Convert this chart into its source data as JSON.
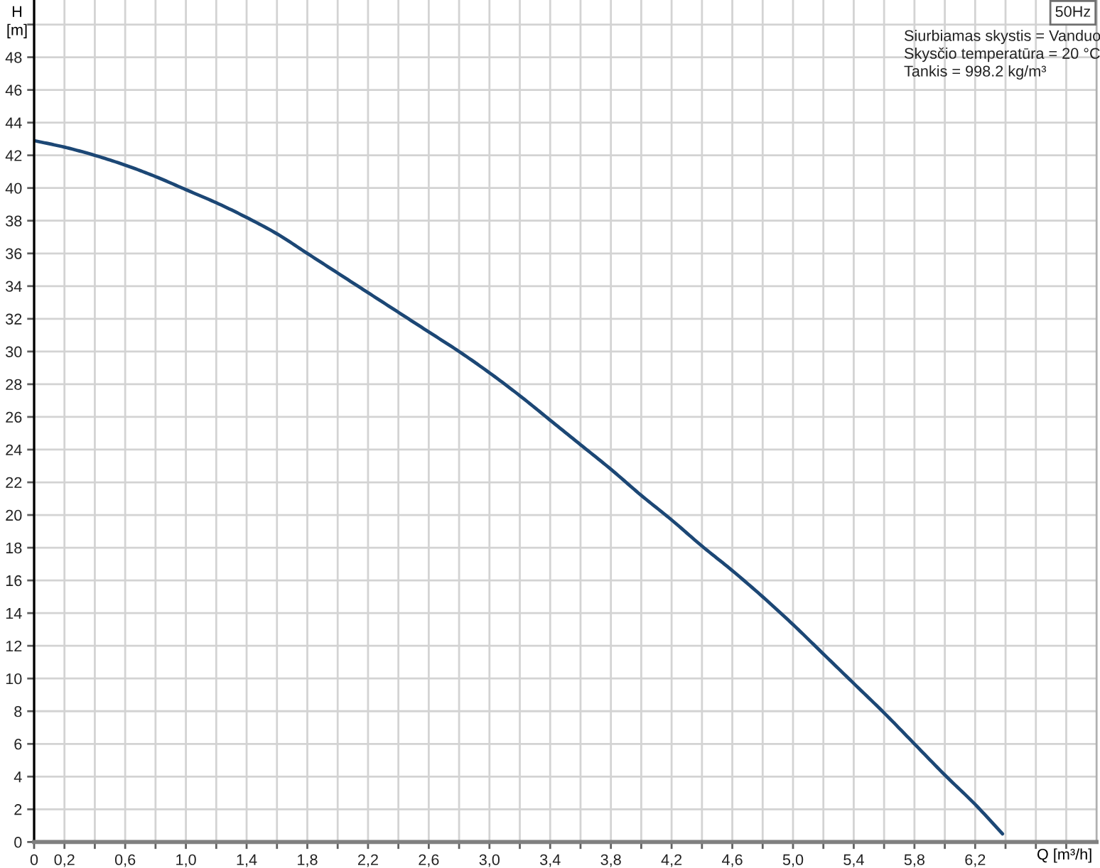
{
  "chart_data": {
    "type": "line",
    "title": "50Hz",
    "xlabel": "Q [m³/h]",
    "ylabel": "H\n[m]",
    "annotations": [
      "Siurbiamas skystis = Vanduo",
      "Skysčio temperatūra = 20 °C",
      "Tankis = 998.2 kg/m³"
    ],
    "series": [
      {
        "color": "#1c4775",
        "x": [
          0,
          0.2,
          0.4,
          0.6,
          0.8,
          1.0,
          1.2,
          1.4,
          1.6,
          1.8,
          2.0,
          2.2,
          2.4,
          2.6,
          2.8,
          3.0,
          3.2,
          3.4,
          3.6,
          3.8,
          4.0,
          4.2,
          4.4,
          4.6,
          4.8,
          5.0,
          5.2,
          5.4,
          5.6,
          5.8,
          6.0,
          6.2,
          6.38
        ],
        "values": [
          42.9,
          42.5,
          42.0,
          41.4,
          40.7,
          39.9,
          39.1,
          38.2,
          37.2,
          36.0,
          34.8,
          33.6,
          32.4,
          31.2,
          30.0,
          28.7,
          27.3,
          25.8,
          24.3,
          22.8,
          21.2,
          19.7,
          18.1,
          16.6,
          15.0,
          13.3,
          11.5,
          9.7,
          7.9,
          6.0,
          4.1,
          2.3,
          0.5
        ]
      }
    ],
    "xlim": [
      0,
      7.0
    ],
    "xticks": [
      0,
      {
        "value": 0.2,
        "label": "0,2"
      },
      {
        "value": 0.4,
        "label": null
      },
      {
        "value": 0.6,
        "label": "0,6"
      },
      {
        "value": 0.8,
        "label": null
      },
      {
        "value": 1.0,
        "label": "1,0"
      },
      {
        "value": 1.2,
        "label": null
      },
      {
        "value": 1.4,
        "label": "1,4"
      },
      {
        "value": 1.6,
        "label": null
      },
      {
        "value": 1.8,
        "label": "1,8"
      },
      {
        "value": 2.0,
        "label": null
      },
      {
        "value": 2.2,
        "label": "2,2"
      },
      {
        "value": 2.4,
        "label": null
      },
      {
        "value": 2.6,
        "label": "2,6"
      },
      {
        "value": 2.8,
        "label": null
      },
      {
        "value": 3.0,
        "label": "3,0"
      },
      {
        "value": 3.2,
        "label": null
      },
      {
        "value": 3.4,
        "label": "3,4"
      },
      {
        "value": 3.6,
        "label": null
      },
      {
        "value": 3.8,
        "label": "3,8"
      },
      {
        "value": 4.0,
        "label": null
      },
      {
        "value": 4.2,
        "label": "4,2"
      },
      {
        "value": 4.4,
        "label": null
      },
      {
        "value": 4.6,
        "label": "4,6"
      },
      {
        "value": 4.8,
        "label": null
      },
      {
        "value": 5.0,
        "label": "5,0"
      },
      {
        "value": 5.2,
        "label": null
      },
      {
        "value": 5.4,
        "label": "5,4"
      },
      {
        "value": 5.6,
        "label": null
      },
      {
        "value": 5.8,
        "label": "5,8"
      },
      {
        "value": 6.0,
        "label": null
      },
      {
        "value": 6.2,
        "label": "6,2"
      },
      {
        "value": 6.4,
        "label": null
      },
      {
        "value": 6.6,
        "label": null
      },
      {
        "value": 6.8,
        "label": null
      }
    ],
    "ylim": [
      0,
      51.5
    ],
    "yticks": [
      0,
      2,
      4,
      6,
      8,
      10,
      12,
      14,
      16,
      18,
      20,
      22,
      24,
      26,
      28,
      30,
      32,
      34,
      36,
      38,
      40,
      42,
      44,
      46,
      48,
      {
        "value": 50,
        "label": null
      }
    ],
    "grid": true,
    "marker": "none",
    "line_style": "solid"
  }
}
